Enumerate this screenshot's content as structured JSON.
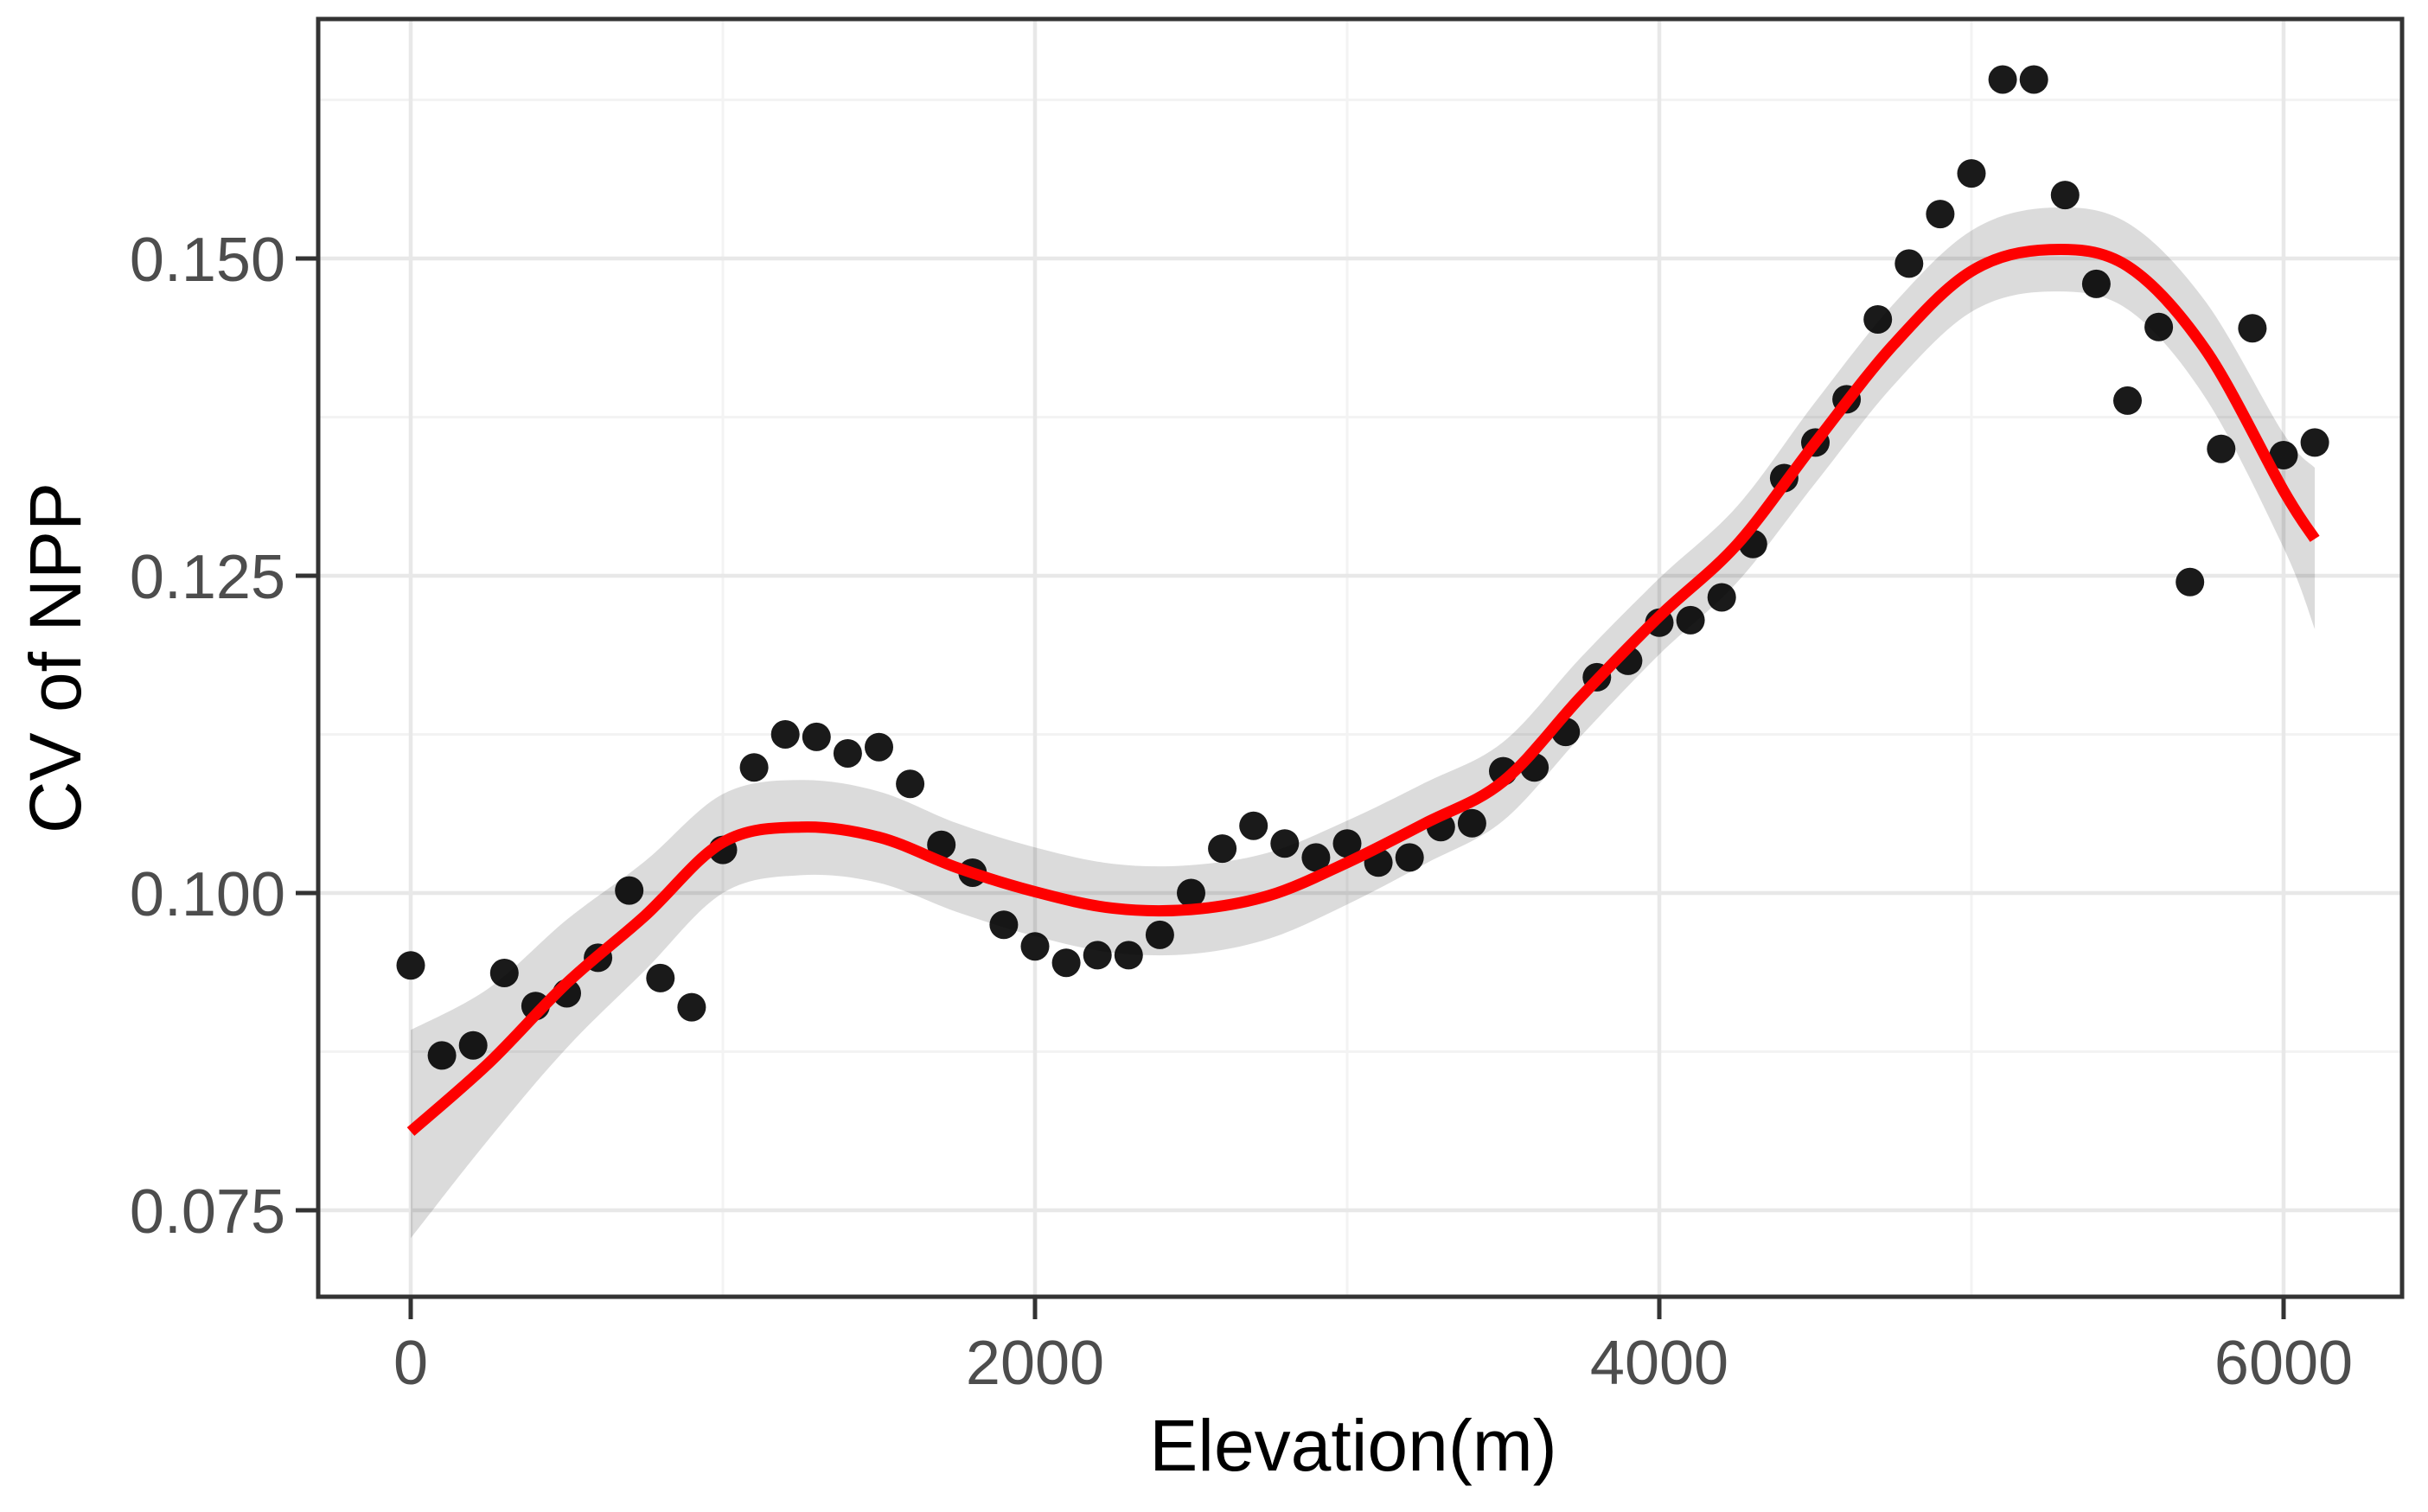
{
  "chart_data": {
    "type": "scatter",
    "title": "",
    "xlabel": "Elevation(m)",
    "ylabel": "CV of NPP",
    "legend": "none",
    "grid": "major+minor",
    "xlim": [
      -300,
      6380
    ],
    "ylim": [
      0.0682,
      0.1689
    ],
    "x_ticks": [
      0,
      2000,
      4000,
      6000
    ],
    "x_tick_labels": [
      "0",
      "2000",
      "4000",
      "6000"
    ],
    "x_minor_ticks": [
      1000,
      3000,
      5000
    ],
    "y_ticks": [
      0.075,
      0.1,
      0.125,
      0.15
    ],
    "y_tick_labels": [
      "0.075",
      "0.100",
      "0.125",
      "0.150"
    ],
    "y_minor_ticks": [
      0.0875,
      0.1125,
      0.1375,
      0.1625
    ],
    "points": [
      [
        0,
        0.0943
      ],
      [
        100,
        0.0872
      ],
      [
        200,
        0.088
      ],
      [
        300,
        0.0937
      ],
      [
        400,
        0.0911
      ],
      [
        500,
        0.0921
      ],
      [
        600,
        0.0949
      ],
      [
        700,
        0.1002
      ],
      [
        800,
        0.0933
      ],
      [
        900,
        0.091
      ],
      [
        1000,
        0.1034
      ],
      [
        1100,
        0.1099
      ],
      [
        1200,
        0.1125
      ],
      [
        1300,
        0.1123
      ],
      [
        1400,
        0.111
      ],
      [
        1500,
        0.1115
      ],
      [
        1600,
        0.1086
      ],
      [
        1700,
        0.1038
      ],
      [
        1800,
        0.1016
      ],
      [
        1900,
        0.0975
      ],
      [
        2000,
        0.0958
      ],
      [
        2100,
        0.0945
      ],
      [
        2200,
        0.0951
      ],
      [
        2300,
        0.0951
      ],
      [
        2400,
        0.0967
      ],
      [
        2500,
        0.1
      ],
      [
        2600,
        0.1035
      ],
      [
        2700,
        0.1053
      ],
      [
        2800,
        0.1039
      ],
      [
        2900,
        0.1028
      ],
      [
        3000,
        0.1039
      ],
      [
        3100,
        0.1024
      ],
      [
        3200,
        0.1028
      ],
      [
        3300,
        0.1052
      ],
      [
        3400,
        0.1055
      ],
      [
        3500,
        0.1096
      ],
      [
        3600,
        0.1099
      ],
      [
        3700,
        0.1127
      ],
      [
        3800,
        0.117
      ],
      [
        3900,
        0.1183
      ],
      [
        4000,
        0.1213
      ],
      [
        4100,
        0.1215
      ],
      [
        4200,
        0.1233
      ],
      [
        4300,
        0.1275
      ],
      [
        4400,
        0.1327
      ],
      [
        4500,
        0.1355
      ],
      [
        4600,
        0.1389
      ],
      [
        4700,
        0.1452
      ],
      [
        4800,
        0.1496
      ],
      [
        4900,
        0.1535
      ],
      [
        5000,
        0.1567
      ],
      [
        5100,
        0.1641
      ],
      [
        5200,
        0.1641
      ],
      [
        5300,
        0.155
      ],
      [
        5400,
        0.148
      ],
      [
        5500,
        0.1388
      ],
      [
        5600,
        0.1446
      ],
      [
        5700,
        0.1245
      ],
      [
        5800,
        0.135
      ],
      [
        5900,
        0.1445
      ],
      [
        6000,
        0.1345
      ],
      [
        6100,
        0.1355
      ]
    ],
    "smooth": {
      "name": "loess-fit",
      "points_fit_lo_hi": [
        [
          0,
          0.0812,
          0.0728,
          0.0892
        ],
        [
          250,
          0.0866,
          0.0806,
          0.0925
        ],
        [
          500,
          0.0929,
          0.0878,
          0.0979
        ],
        [
          750,
          0.0982,
          0.0939,
          0.1025
        ],
        [
          1000,
          0.104,
          0.1,
          0.1078
        ],
        [
          1250,
          0.1052,
          0.1014,
          0.1089
        ],
        [
          1500,
          0.1044,
          0.1008,
          0.108
        ],
        [
          1750,
          0.102,
          0.0985,
          0.1055
        ],
        [
          2000,
          0.1001,
          0.0966,
          0.1036
        ],
        [
          2250,
          0.0988,
          0.0953,
          0.1023
        ],
        [
          2500,
          0.0987,
          0.0952,
          0.1022
        ],
        [
          2750,
          0.0998,
          0.0964,
          0.1032
        ],
        [
          3000,
          0.1024,
          0.0991,
          0.1057
        ],
        [
          3250,
          0.1055,
          0.1023,
          0.1087
        ],
        [
          3500,
          0.1088,
          0.1057,
          0.1119
        ],
        [
          3750,
          0.1155,
          0.1124,
          0.1186
        ],
        [
          4000,
          0.1218,
          0.1188,
          0.1248
        ],
        [
          4250,
          0.1275,
          0.1245,
          0.1305
        ],
        [
          4500,
          0.1355,
          0.1323,
          0.1387
        ],
        [
          4750,
          0.1432,
          0.14,
          0.1464
        ],
        [
          5000,
          0.149,
          0.1458,
          0.1522
        ],
        [
          5250,
          0.1507,
          0.1474,
          0.154
        ],
        [
          5500,
          0.1494,
          0.146,
          0.1528
        ],
        [
          5750,
          0.1428,
          0.139,
          0.1466
        ],
        [
          6000,
          0.1317,
          0.1272,
          0.1362
        ],
        [
          6100,
          0.1279,
          0.1208,
          0.1335
        ]
      ]
    },
    "colors": {
      "point": "#1a1a1a",
      "line": "#fe0000",
      "band": "rgba(0,0,0,0.14)",
      "grid_major": "#e8e8e8",
      "grid_minor": "#f3f3f3",
      "panel_border": "#333333",
      "tick": "#333333",
      "tick_label": "#4d4d4d",
      "axis_title": "#000000",
      "panel_bg": "#ffffff"
    }
  }
}
